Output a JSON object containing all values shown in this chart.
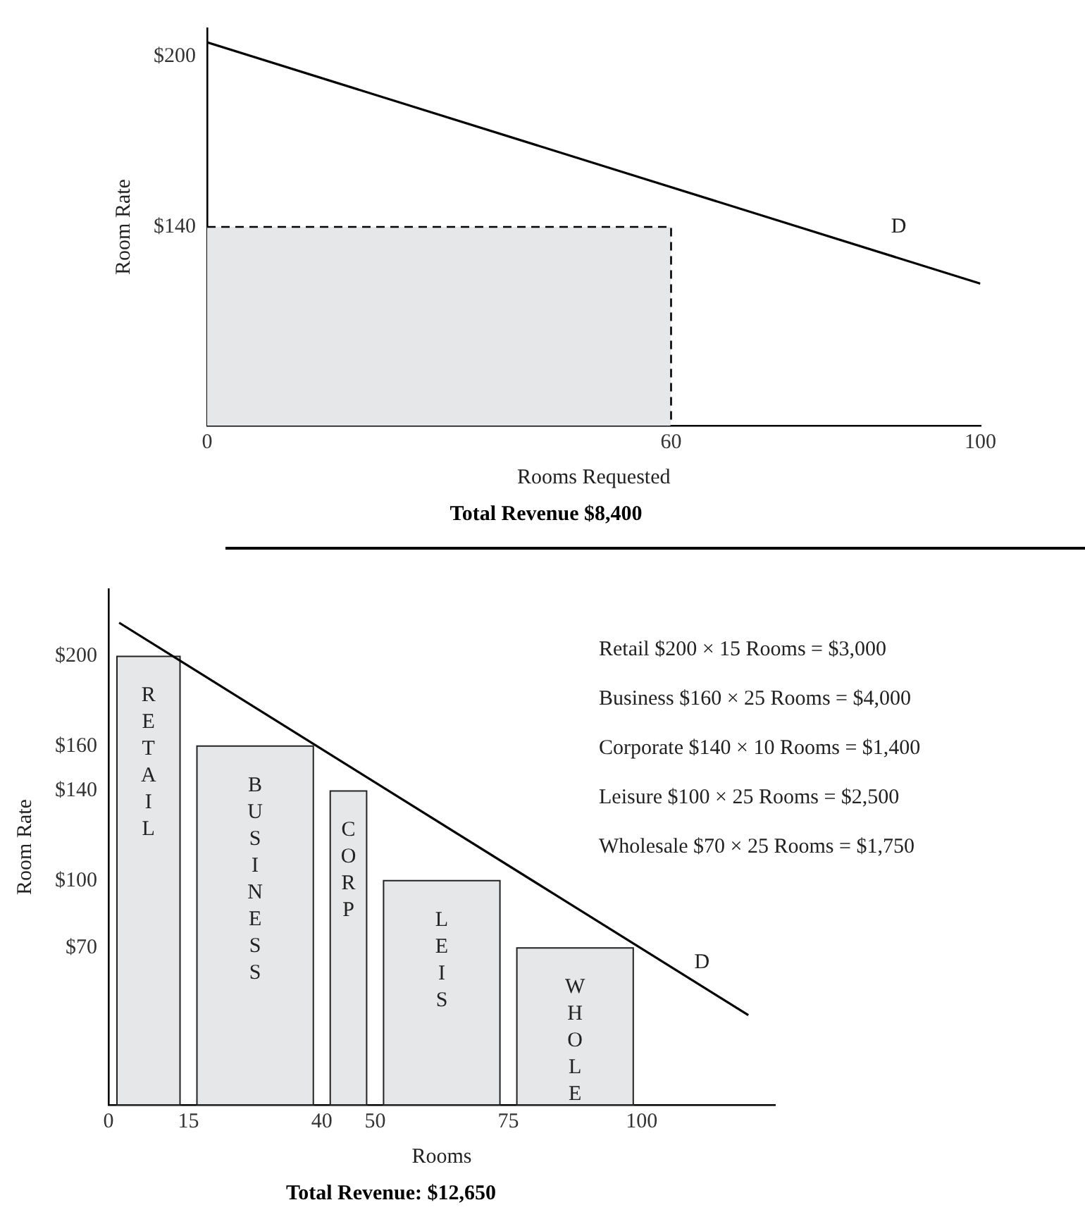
{
  "chart_data": [
    {
      "type": "line",
      "title": "Total Revenue $8,400",
      "xlabel": "Rooms Requested",
      "ylabel": "Room Rate",
      "xlim": [
        0,
        100
      ],
      "ylim": [
        70,
        210
      ],
      "xticks": [
        0,
        60,
        100
      ],
      "yticks": [
        {
          "value": 140,
          "label": "$140"
        },
        {
          "value": 200,
          "label": "$200"
        }
      ],
      "annotations": [
        {
          "text": "D",
          "x": 92,
          "y": 127
        }
      ],
      "series": [
        {
          "type": "area",
          "color": "#e6e7e8",
          "line_style": "dashed",
          "x": [
            0,
            60,
            60
          ],
          "values": [
            140,
            140,
            70
          ]
        },
        {
          "color": "#000000",
          "x": [
            0,
            100
          ],
          "values": [
            205,
            120
          ]
        }
      ]
    },
    {
      "type": "histogram",
      "title": "Total Revenue: $12,650",
      "xlabel": "Rooms",
      "ylabel": "Room Rate",
      "xlim": [
        0,
        125
      ],
      "ylim": [
        0,
        230
      ],
      "xticks": [
        0,
        15,
        40,
        50,
        75,
        100
      ],
      "yticks": [
        {
          "value": 70,
          "label": "$70"
        },
        {
          "value": 100,
          "label": "$100"
        },
        {
          "value": 140,
          "label": "$140"
        },
        {
          "value": 160,
          "label": "$160"
        },
        {
          "value": 200,
          "label": "$200"
        }
      ],
      "annotations": [
        "Retail $200 × 15 Rooms = $3,000",
        "Business $160 × 25 Rooms = $4,000",
        "Corporate $140 × 10 Rooms = $1,400",
        "Leisure $100 × 25 Rooms = $2,500",
        "Wholesale $70 × 25 Rooms = $1,750",
        {
          "text": "RETAIL",
          "x": 7.5,
          "y": 200
        },
        {
          "text": "BUSINESS",
          "x": 27.5,
          "y": 160
        },
        {
          "text": "CORP",
          "x": 45,
          "y": 140
        },
        {
          "text": "LEIS",
          "x": 62.5,
          "y": 100
        },
        {
          "text": "WHOLE",
          "x": 87.5,
          "y": 70
        },
        {
          "text": "D",
          "x": 115,
          "y": 47
        }
      ],
      "series": [
        {
          "color": "#e6e7e8",
          "bins": [
            0,
            15,
            40,
            50,
            75,
            100
          ],
          "values": [
            200,
            160,
            140,
            100,
            70
          ]
        },
        {
          "type": "line",
          "color": "#000000",
          "x": [
            2,
            120
          ],
          "values": [
            215,
            40
          ]
        }
      ]
    }
  ]
}
